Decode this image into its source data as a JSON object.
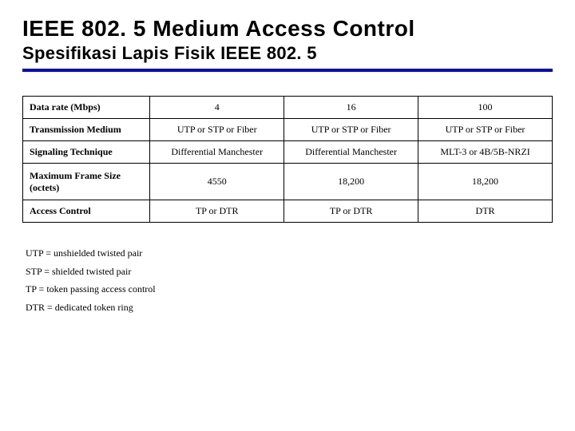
{
  "header": {
    "title": "IEEE 802. 5 Medium Access Control",
    "subtitle": "Spesifikasi Lapis Fisik IEEE 802. 5"
  },
  "table": {
    "columns": [
      "label",
      "col1",
      "col2",
      "col3"
    ],
    "column_widths_pct": [
      24,
      25.3,
      25.3,
      25.3
    ],
    "rows": [
      {
        "label": "Data rate (Mbps)",
        "c1": "4",
        "c2": "16",
        "c3": "100"
      },
      {
        "label": "Transmission Medium",
        "c1": "UTP or STP or Fiber",
        "c2": "UTP or STP or Fiber",
        "c3": "UTP or STP or Fiber"
      },
      {
        "label": "Signaling Technique",
        "c1": "Differential Manchester",
        "c2": "Differential Manchester",
        "c3": "MLT-3 or 4B/5B-NRZI"
      },
      {
        "label": "Maximum Frame Size (octets)",
        "c1": "4550",
        "c2": "18,200",
        "c3": "18,200"
      },
      {
        "label": "Access Control",
        "c1": "TP or DTR",
        "c2": "TP or DTR",
        "c3": "DTR"
      }
    ],
    "border_color": "#000000",
    "font_size": 12,
    "label_font_weight": "bold"
  },
  "legend": {
    "items": [
      "UTP = unshielded twisted pair",
      "STP = shielded twisted pair",
      "TP = token passing access control",
      "DTR = dedicated token ring"
    ],
    "font_size": 12
  },
  "colors": {
    "rule": "#0000cc",
    "background": "#ffffff",
    "text": "#000000"
  }
}
